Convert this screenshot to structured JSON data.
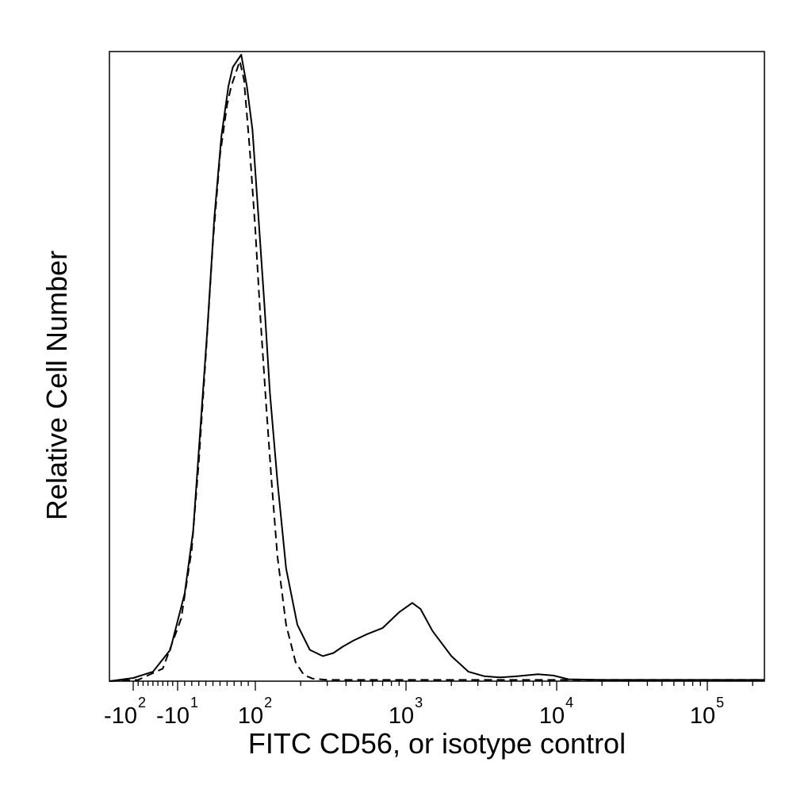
{
  "chart_data": {
    "type": "line",
    "xlabel": "FITC CD56, or isotype control",
    "ylabel": "Relative Cell Number",
    "x_scale": "logicle",
    "grid": false,
    "legend": "none",
    "x_tick_labels": [
      {
        "base": "-10",
        "exp": "2"
      },
      {
        "base": "-10",
        "exp": "1"
      },
      {
        "base": "10",
        "exp": "2"
      },
      {
        "base": "10",
        "exp": "3"
      },
      {
        "base": "10",
        "exp": "4"
      },
      {
        "base": "10",
        "exp": "5"
      }
    ],
    "xlim": [
      -150,
      250000
    ],
    "ylim": [
      0,
      100
    ],
    "series": [
      {
        "style": "solid",
        "color": "#000000",
        "x": [
          -150,
          -100,
          -60,
          -25,
          0,
          12,
          22,
          32,
          42,
          52,
          62,
          68,
          74,
          80,
          88,
          96,
          105,
          115,
          125,
          140,
          160,
          190,
          230,
          280,
          330,
          380,
          450,
          550,
          700,
          900,
          1100,
          1250,
          1500,
          2000,
          2600,
          3300,
          4200,
          5500,
          7500,
          9500,
          12000,
          20000,
          40000,
          80000,
          250000
        ],
        "y": [
          0,
          0.5,
          1.5,
          5,
          14,
          24,
          40,
          56,
          74,
          87,
          95,
          98,
          99,
          100,
          95,
          88,
          74,
          60,
          46,
          32,
          18,
          9,
          5,
          4,
          4.5,
          5.5,
          6.5,
          7.5,
          8.5,
          11,
          12.5,
          11.5,
          8,
          4,
          1.5,
          0.8,
          0.6,
          0.8,
          1.1,
          0.9,
          0.3,
          0.2,
          0.2,
          0.2,
          0.2
        ]
      },
      {
        "style": "dashed",
        "color": "#000000",
        "x": [
          -150,
          -90,
          -40,
          -5,
          10,
          20,
          30,
          40,
          50,
          60,
          66,
          72,
          78,
          84,
          92,
          100,
          108,
          118,
          128,
          140,
          160,
          185,
          210,
          240,
          300,
          400,
          600,
          1000,
          10000,
          250000
        ],
        "y": [
          0,
          0.2,
          2,
          10,
          21,
          35,
          52,
          70,
          84,
          92,
          95,
          97,
          99,
          96,
          85,
          72,
          58,
          44,
          32,
          20,
          9,
          3,
          1,
          0.4,
          0.2,
          0.2,
          0.2,
          0.2,
          0.2,
          0.2
        ]
      }
    ]
  }
}
